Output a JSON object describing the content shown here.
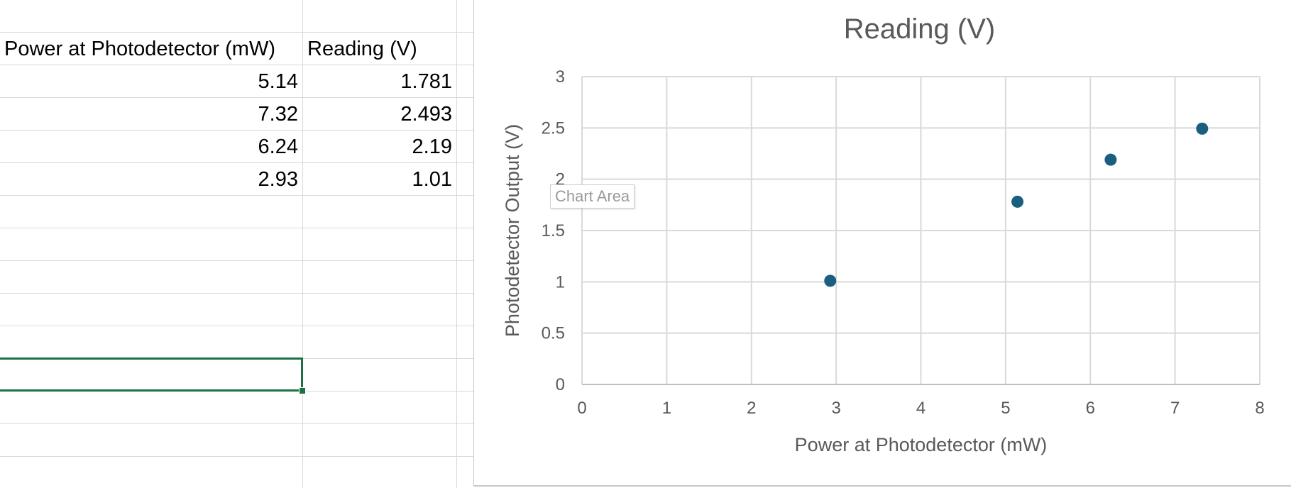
{
  "sheet": {
    "headers": [
      "Power at Photodetector (mW)",
      "Reading (V)"
    ],
    "rows": [
      [
        "5.14",
        "1.781"
      ],
      [
        "7.32",
        "2.493"
      ],
      [
        "6.24",
        "2.19"
      ],
      [
        "2.93",
        "1.01"
      ]
    ]
  },
  "tooltip": "Chart Area",
  "colors": {
    "marker": "#1a5f80",
    "gridline": "#d9d9d9",
    "selection": "#1e7145"
  },
  "chart_data": {
    "type": "scatter",
    "title": "Reading (V)",
    "xlabel": "Power at Photodetector (mW)",
    "ylabel": "Photodetector Output  (V)",
    "xlim": [
      0,
      8
    ],
    "ylim": [
      0,
      3
    ],
    "x_ticks": [
      "0",
      "1",
      "2",
      "3",
      "4",
      "5",
      "6",
      "7",
      "8"
    ],
    "y_ticks": [
      "0",
      "0.5",
      "1",
      "1.5",
      "2",
      "2.5",
      "3"
    ],
    "grid": true,
    "legend": "none",
    "series": [
      {
        "x": [
          5.14,
          7.32,
          6.24,
          2.93
        ],
        "y": [
          1.781,
          2.493,
          2.19,
          1.01
        ]
      }
    ]
  }
}
